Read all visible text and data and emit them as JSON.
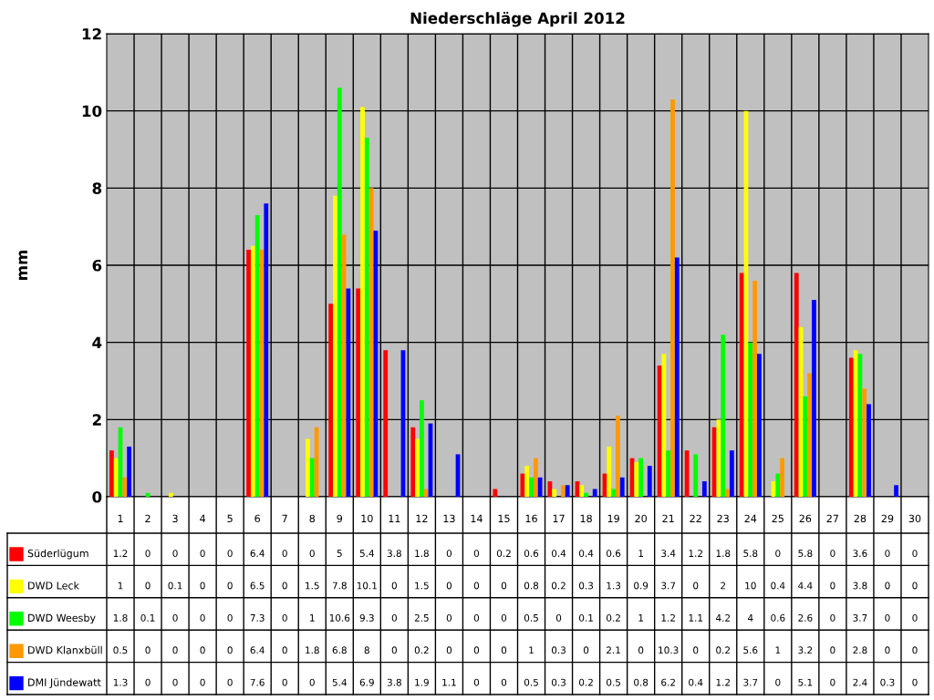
{
  "chart_data": {
    "type": "bar",
    "title": "Niederschläge April 2012",
    "ylabel": "mm",
    "categories": [
      "1",
      "2",
      "3",
      "4",
      "5",
      "6",
      "7",
      "8",
      "9",
      "10",
      "11",
      "12",
      "13",
      "14",
      "15",
      "16",
      "17",
      "18",
      "19",
      "20",
      "21",
      "22",
      "23",
      "24",
      "25",
      "26",
      "27",
      "28",
      "29",
      "30"
    ],
    "series": [
      {
        "name": "Süderlügum",
        "color": "#ff0000",
        "values": [
          1.2,
          0,
          0,
          0,
          0,
          6.4,
          0,
          0,
          5,
          5.4,
          3.8,
          1.8,
          0,
          0,
          0.2,
          0.6,
          0.4,
          0.4,
          0.6,
          1,
          3.4,
          1.2,
          1.8,
          5.8,
          0,
          5.8,
          0,
          3.6,
          0,
          0
        ]
      },
      {
        "name": "DWD Leck",
        "color": "#ffff00",
        "values": [
          1,
          0,
          0.1,
          0,
          0,
          6.5,
          0,
          1.5,
          7.8,
          10.1,
          0,
          1.5,
          0,
          0,
          0,
          0.8,
          0.2,
          0.3,
          1.3,
          0.9,
          3.7,
          0,
          2,
          10,
          0.4,
          4.4,
          0,
          3.8,
          0,
          0
        ]
      },
      {
        "name": "DWD Weesby",
        "color": "#00ff00",
        "values": [
          1.8,
          0.1,
          0,
          0,
          0,
          7.3,
          0,
          1,
          10.6,
          9.3,
          0,
          2.5,
          0,
          0,
          0,
          0.5,
          0,
          0.1,
          0.2,
          1,
          1.2,
          1.1,
          4.2,
          4,
          0.6,
          2.6,
          0,
          3.7,
          0,
          0
        ]
      },
      {
        "name": "DWD Klanxbüll",
        "color": "#ff9900",
        "values": [
          0.5,
          0,
          0,
          0,
          0,
          6.4,
          0,
          1.8,
          6.8,
          8,
          0,
          0.2,
          0,
          0,
          0,
          1,
          0.3,
          0,
          2.1,
          0,
          10.3,
          0,
          0.2,
          5.6,
          1,
          3.2,
          0,
          2.8,
          0,
          0
        ]
      },
      {
        "name": "DMI Jündewatt",
        "color": "#0000ff",
        "values": [
          1.3,
          0,
          0,
          0,
          0,
          7.6,
          0,
          0,
          5.4,
          6.9,
          3.8,
          1.9,
          1.1,
          0,
          0,
          0.5,
          0.3,
          0.2,
          0.5,
          0.8,
          6.2,
          0.4,
          1.2,
          3.7,
          0,
          5.1,
          0,
          2.4,
          0.3,
          0
        ]
      }
    ],
    "ylim": [
      0,
      12
    ],
    "yticks": [
      0,
      2,
      4,
      6,
      8,
      10,
      12
    ],
    "grid": true,
    "data_labels": true,
    "legend": "bottom"
  }
}
